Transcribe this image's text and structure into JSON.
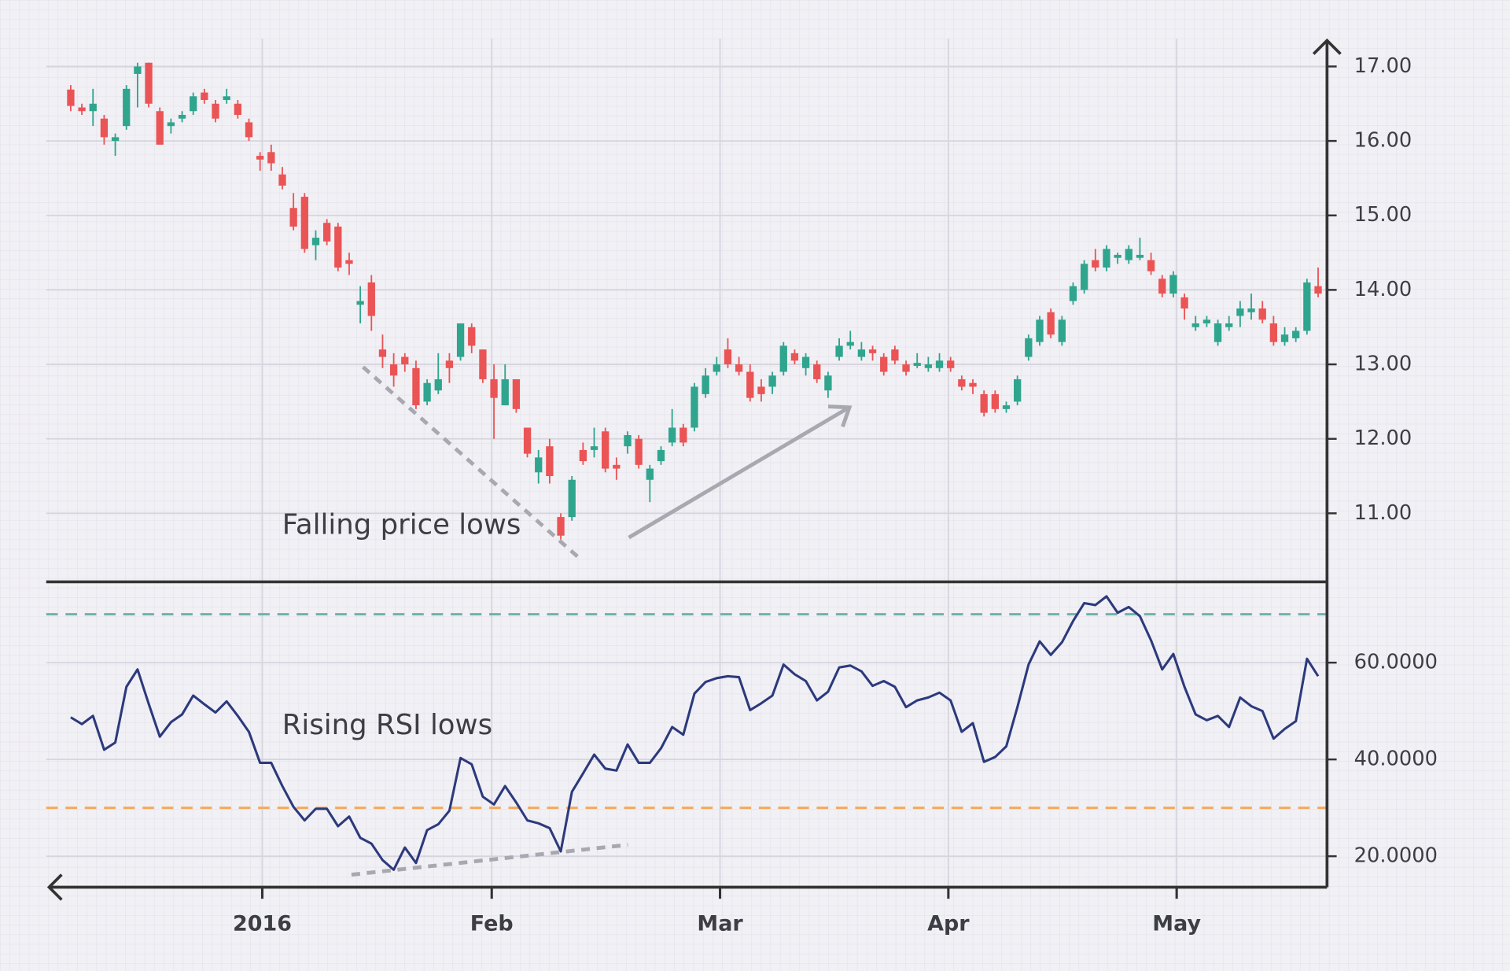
{
  "chart_data": [
    {
      "type": "candlestick",
      "annotation": "Falling price lows",
      "x": [
        0,
        1,
        2,
        3,
        4,
        5,
        6,
        7,
        8,
        9,
        10,
        11,
        12,
        13,
        14,
        15,
        16,
        17,
        18,
        19,
        20,
        21,
        22,
        23,
        24,
        25,
        26,
        27,
        28,
        29,
        30,
        31,
        32,
        33,
        34,
        35,
        36,
        37,
        38,
        39,
        40,
        41,
        42,
        43,
        44,
        45,
        46,
        47,
        48,
        49,
        50,
        51,
        52,
        53,
        54,
        55,
        56,
        57,
        58,
        59,
        60,
        61,
        62,
        63,
        64,
        65,
        66,
        67,
        68,
        69,
        70,
        71,
        72,
        73,
        74,
        75,
        76,
        77,
        78,
        79,
        80,
        81,
        82,
        83,
        84,
        85,
        86,
        87,
        88,
        89,
        90,
        91,
        92,
        93,
        94,
        95,
        96,
        97,
        98,
        99,
        100,
        101,
        102,
        103,
        104,
        105,
        106,
        107,
        108,
        109,
        110,
        111,
        112
      ],
      "open": [
        16.69,
        16.45,
        16.4,
        16.3,
        16.0,
        16.2,
        16.9,
        17.05,
        16.4,
        16.2,
        16.3,
        16.4,
        16.65,
        16.5,
        16.55,
        16.5,
        16.25,
        15.8,
        15.85,
        15.55,
        15.1,
        15.25,
        14.6,
        14.9,
        14.85,
        14.4,
        13.8,
        14.1,
        13.2,
        13.0,
        13.1,
        12.95,
        12.5,
        12.65,
        13.05,
        13.1,
        13.5,
        13.2,
        12.8,
        12.45,
        12.8,
        12.15,
        11.55,
        11.9,
        10.95,
        10.95,
        11.85,
        11.85,
        12.1,
        11.65,
        11.9,
        12.0,
        11.45,
        11.7,
        11.95,
        12.15,
        12.15,
        12.6,
        12.9,
        13.2,
        13.0,
        12.9,
        12.7,
        12.7,
        12.9,
        13.15,
        12.95,
        13.0,
        12.65,
        13.1,
        13.25,
        13.1,
        13.2,
        13.1,
        13.2,
        13.0,
        12.98,
        12.95,
        12.95,
        13.05,
        12.8,
        12.75,
        12.6,
        12.6,
        12.4,
        12.5,
        13.1,
        13.3,
        13.7,
        13.3,
        13.85,
        14.0,
        14.4,
        14.3,
        14.43,
        14.4,
        14.43,
        14.4,
        14.15,
        13.95,
        13.9,
        13.5,
        13.55,
        13.3,
        13.5,
        13.65,
        13.7,
        13.75,
        13.55,
        13.3,
        13.35,
        13.45,
        14.05
      ],
      "high": [
        16.75,
        16.5,
        16.7,
        16.35,
        16.1,
        16.75,
        17.05,
        17.05,
        16.45,
        16.3,
        16.4,
        16.65,
        16.7,
        16.55,
        16.7,
        16.55,
        16.3,
        15.85,
        15.95,
        15.65,
        15.3,
        15.3,
        14.8,
        14.95,
        14.9,
        14.5,
        14.05,
        14.2,
        13.4,
        13.15,
        13.15,
        13.05,
        12.8,
        13.15,
        13.15,
        13.55,
        13.55,
        13.2,
        13.0,
        13.0,
        12.8,
        12.15,
        11.85,
        12.0,
        11.0,
        11.5,
        11.95,
        12.15,
        12.15,
        11.75,
        12.1,
        12.05,
        11.65,
        11.9,
        12.4,
        12.2,
        12.75,
        12.95,
        13.1,
        13.35,
        13.1,
        13.0,
        12.8,
        12.9,
        13.3,
        13.2,
        13.15,
        13.05,
        12.9,
        13.35,
        13.45,
        13.3,
        13.25,
        13.15,
        13.25,
        13.05,
        13.15,
        13.1,
        13.15,
        13.1,
        12.85,
        12.8,
        12.65,
        12.65,
        12.5,
        12.85,
        13.4,
        13.65,
        13.75,
        13.65,
        14.1,
        14.4,
        14.55,
        14.6,
        14.5,
        14.6,
        14.7,
        14.5,
        14.2,
        14.25,
        13.95,
        13.65,
        13.65,
        13.6,
        13.65,
        13.85,
        13.95,
        13.85,
        13.65,
        13.5,
        13.5,
        14.15,
        14.3
      ],
      "low": [
        16.4,
        16.35,
        16.2,
        15.95,
        15.8,
        16.15,
        16.45,
        16.45,
        15.95,
        16.1,
        16.25,
        16.35,
        16.5,
        16.25,
        16.5,
        16.3,
        16.0,
        15.6,
        15.6,
        15.35,
        14.8,
        14.5,
        14.4,
        14.6,
        14.25,
        14.2,
        13.55,
        13.45,
        12.95,
        12.7,
        12.9,
        12.4,
        12.45,
        12.6,
        12.75,
        13.05,
        13.15,
        12.75,
        12.0,
        12.45,
        12.35,
        11.75,
        11.4,
        11.4,
        10.65,
        10.9,
        11.65,
        11.75,
        11.55,
        11.45,
        11.8,
        11.6,
        11.15,
        11.65,
        11.9,
        11.9,
        12.1,
        12.55,
        12.85,
        12.95,
        12.85,
        12.5,
        12.5,
        12.6,
        12.85,
        13.0,
        12.85,
        12.75,
        12.55,
        13.05,
        13.2,
        13.05,
        13.05,
        12.85,
        13.0,
        12.85,
        12.95,
        12.9,
        12.9,
        12.9,
        12.65,
        12.6,
        12.3,
        12.35,
        12.35,
        12.45,
        13.05,
        13.25,
        13.35,
        13.25,
        13.8,
        13.95,
        14.25,
        14.25,
        14.35,
        14.35,
        14.4,
        14.2,
        13.9,
        13.9,
        13.6,
        13.45,
        13.5,
        13.25,
        13.45,
        13.5,
        13.6,
        13.55,
        13.25,
        13.25,
        13.3,
        13.4,
        13.9
      ],
      "close": [
        16.47,
        16.4,
        16.5,
        16.05,
        16.05,
        16.7,
        17.0,
        16.5,
        15.95,
        16.25,
        16.35,
        16.6,
        16.55,
        16.3,
        16.6,
        16.35,
        16.05,
        15.75,
        15.7,
        15.4,
        14.85,
        14.55,
        14.7,
        14.65,
        14.3,
        14.35,
        13.85,
        13.65,
        13.1,
        12.85,
        13.0,
        12.45,
        12.75,
        12.8,
        12.95,
        13.55,
        13.25,
        12.8,
        12.55,
        12.8,
        12.4,
        11.8,
        11.75,
        11.5,
        10.7,
        11.45,
        11.7,
        11.9,
        11.6,
        11.6,
        12.05,
        11.65,
        11.6,
        11.85,
        12.15,
        11.95,
        12.7,
        12.85,
        13.0,
        13.0,
        12.9,
        12.55,
        12.6,
        12.85,
        13.25,
        13.05,
        13.1,
        12.8,
        12.85,
        13.25,
        13.3,
        13.2,
        13.15,
        12.9,
        13.05,
        12.9,
        13.02,
        13.0,
        13.05,
        12.95,
        12.7,
        12.7,
        12.35,
        12.4,
        12.45,
        12.8,
        13.35,
        13.6,
        13.4,
        13.6,
        14.05,
        14.35,
        14.3,
        14.55,
        14.47,
        14.55,
        14.47,
        14.25,
        13.95,
        14.2,
        13.75,
        13.55,
        13.6,
        13.55,
        13.55,
        13.75,
        13.75,
        13.6,
        13.3,
        13.4,
        13.45,
        14.1,
        13.95
      ],
      "up_color": "#2fa58e",
      "down_color": "#ea5455",
      "xlim": [
        -2.2,
        112.8
      ],
      "ylim": [
        10.08,
        17.375
      ],
      "yticks": [
        {
          "value": 11,
          "label": "11.00"
        },
        {
          "value": 12,
          "label": "12.00"
        },
        {
          "value": 13,
          "label": "13.00"
        },
        {
          "value": 14,
          "label": "14.00"
        },
        {
          "value": 15,
          "label": "15.00"
        },
        {
          "value": 16,
          "label": "16.00"
        },
        {
          "value": 17,
          "label": "17.00"
        }
      ],
      "grid": true
    },
    {
      "type": "line",
      "annotation": "Rising RSI lows",
      "x": [
        0,
        1,
        2,
        3,
        4,
        5,
        6,
        7,
        8,
        9,
        10,
        11,
        12,
        13,
        14,
        15,
        16,
        17,
        18,
        19,
        20,
        21,
        22,
        23,
        24,
        25,
        26,
        27,
        28,
        29,
        30,
        31,
        32,
        33,
        34,
        35,
        36,
        37,
        38,
        39,
        40,
        41,
        42,
        43,
        44,
        45,
        46,
        47,
        48,
        49,
        50,
        51,
        52,
        53,
        54,
        55,
        56,
        57,
        58,
        59,
        60,
        61,
        62,
        63,
        64,
        65,
        66,
        67,
        68,
        69,
        70,
        71,
        72,
        73,
        74,
        75,
        76,
        77,
        78,
        79,
        80,
        81,
        82,
        83,
        84,
        85,
        86,
        87,
        88,
        89,
        90,
        91,
        92,
        93,
        94,
        95,
        96,
        97,
        98,
        99,
        100,
        101,
        102,
        103,
        104,
        105,
        106,
        107,
        108,
        109,
        110,
        111,
        112
      ],
      "values": [
        48.7,
        47.3,
        49,
        42,
        43.5,
        55,
        58.6,
        51.5,
        44.7,
        47.7,
        49.3,
        53.2,
        51.4,
        49.7,
        52,
        49,
        45.7,
        39.3,
        39.3,
        34.5,
        30.2,
        27.4,
        29.8,
        29.8,
        26.2,
        28.2,
        23.8,
        22.6,
        19.2,
        17.2,
        21.8,
        18.6,
        25.4,
        26.6,
        29.4,
        40.3,
        39,
        32.3,
        30.7,
        34.5,
        31.1,
        27.4,
        26.8,
        25.8,
        21,
        33.3,
        37.1,
        41,
        38.1,
        37.7,
        43.1,
        39.3,
        39.3,
        42.3,
        46.7,
        45.1,
        53.6,
        56,
        56.8,
        57.2,
        57,
        50.2,
        51.6,
        53.2,
        59.6,
        57.6,
        56.2,
        52.2,
        54,
        59,
        59.4,
        58.2,
        55.2,
        56.2,
        55,
        50.8,
        52.2,
        52.8,
        53.8,
        52.2,
        45.7,
        47.5,
        39.5,
        40.5,
        42.7,
        50.8,
        59.6,
        64.4,
        61.6,
        64.2,
        68.6,
        72.3,
        71.9,
        73.7,
        70.3,
        71.5,
        69.6,
        64.6,
        58.6,
        61.8,
        55,
        49.3,
        48.1,
        49,
        46.7,
        52.8,
        51,
        50,
        44.3,
        46.3,
        47.9,
        60.8,
        57.2
      ],
      "color": "#2c3a7c",
      "xlim": [
        -2.2,
        112.8
      ],
      "ylim": [
        13.6,
        76.7
      ],
      "xticks": [
        {
          "value": 17.2,
          "label": "2016"
        },
        {
          "value": 37.8,
          "label": "Feb"
        },
        {
          "value": 58.3,
          "label": "Mar"
        },
        {
          "value": 78.8,
          "label": "Apr"
        },
        {
          "value": 99.3,
          "label": "May"
        }
      ],
      "yticks": [
        {
          "value": 20,
          "label": "20.0000"
        },
        {
          "value": 40,
          "label": "40.0000"
        },
        {
          "value": 60,
          "label": "60.0000"
        }
      ],
      "reference_lines": [
        {
          "value": 70,
          "color": "#6fb3aa"
        },
        {
          "value": 30,
          "color": "#f5a95c"
        }
      ],
      "grid": true
    }
  ]
}
